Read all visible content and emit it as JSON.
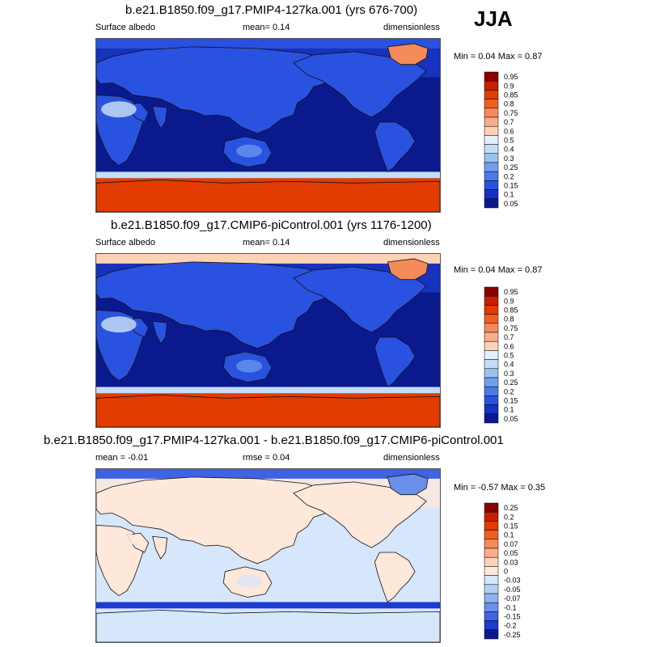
{
  "season": "JJA",
  "panels": [
    {
      "title": "b.e21.B1850.f09_g17.PMIP4-127ka.001 (yrs 676-700)",
      "left_label": "Surface albedo",
      "center_label": "mean=   0.14",
      "right_label": "dimensionless",
      "minmax": "Min =   0.04 Max =   0.87",
      "colorbar": {
        "labels": [
          "0.95",
          "0.9",
          "0.85",
          "0.8",
          "0.75",
          "0.7",
          "0.6",
          "0.5",
          "0.4",
          "0.3",
          "0.25",
          "0.2",
          "0.15",
          "0.1",
          "0.05"
        ],
        "colors": [
          "#8b0000",
          "#c81f00",
          "#e23c00",
          "#ee6020",
          "#f58a5a",
          "#f9ad8a",
          "#fcd2b6",
          "#e6f0fb",
          "#c4dcf6",
          "#9cc2f2",
          "#6f9fee",
          "#4a7ae6",
          "#2a52e0",
          "#1530c6",
          "#0a1a8e"
        ]
      },
      "map_palette": {
        "ocean": "#0a1a8e",
        "ocean_shelf": "#1a38c8",
        "land": "#2a52e0",
        "land_bright": "#6f9fee",
        "desert": "#c4dcf6",
        "ice": "#e23c00",
        "ice_edge": "#c4dcf6",
        "greenland": "#f58a5a",
        "arctic": "#2a52e0"
      }
    },
    {
      "title": "b.e21.B1850.f09_g17.CMIP6-piControl.001 (yrs 1176-1200)",
      "left_label": "Surface albedo",
      "center_label": "mean=   0.14",
      "right_label": "dimensionless",
      "minmax": "Min =   0.04 Max =   0.87",
      "colorbar": {
        "labels": [
          "0.95",
          "0.9",
          "0.85",
          "0.8",
          "0.75",
          "0.7",
          "0.6",
          "0.5",
          "0.4",
          "0.3",
          "0.25",
          "0.2",
          "0.15",
          "0.1",
          "0.05"
        ],
        "colors": [
          "#8b0000",
          "#c81f00",
          "#e23c00",
          "#ee6020",
          "#f58a5a",
          "#f9ad8a",
          "#fcd2b6",
          "#e6f0fb",
          "#c4dcf6",
          "#9cc2f2",
          "#6f9fee",
          "#4a7ae6",
          "#2a52e0",
          "#1530c6",
          "#0a1a8e"
        ]
      },
      "map_palette": {
        "ocean": "#0a1a8e",
        "ocean_shelf": "#1a38c8",
        "land": "#2a52e0",
        "land_bright": "#6f9fee",
        "desert": "#c4dcf6",
        "ice": "#e23c00",
        "ice_edge": "#c4dcf6",
        "greenland": "#f58a5a",
        "arctic": "#fcd2b6"
      }
    },
    {
      "title": "b.e21.B1850.f09_g17.PMIP4-127ka.001 - b.e21.B1850.f09_g17.CMIP6-piControl.001",
      "left_label": "mean =  -0.01",
      "center_label": "rmse =  0.04",
      "right_label": "dimensionless",
      "minmax": "Min =  -0.57 Max =   0.35",
      "colorbar": {
        "labels": [
          "0.25",
          "0.2",
          "0.15",
          "0.1",
          "0.07",
          "0.05",
          "0.03",
          "0",
          "-0.03",
          "-0.05",
          "-0.07",
          "-0.1",
          "-0.15",
          "-0.2",
          "-0.25"
        ],
        "colors": [
          "#8b0000",
          "#c81f00",
          "#e23c00",
          "#ee6020",
          "#f58a5a",
          "#f9ad8a",
          "#fcd2b6",
          "#fde8da",
          "#d6e6fb",
          "#b4cff6",
          "#8fb2f0",
          "#6a90ea",
          "#3f64e2",
          "#1c3bd0",
          "#0a1a8e"
        ]
      },
      "map_palette": {
        "ocean": "#d6e6fb",
        "ocean_shelf": "#fde8da",
        "land": "#fde8da",
        "land_bright": "#d6e6fb",
        "desert": "#fde8da",
        "ice": "#d6e6fb",
        "ice_edge": "#1c3bd0",
        "greenland": "#6a90ea",
        "arctic": "#3f64e2"
      }
    }
  ]
}
